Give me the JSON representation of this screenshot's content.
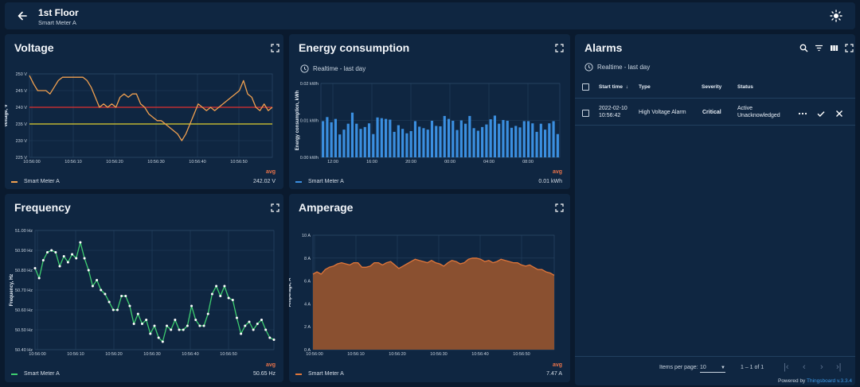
{
  "header": {
    "title": "1st Floor",
    "subtitle": "Smart Meter A"
  },
  "voltage": {
    "title": "Voltage",
    "legend_name": "Smart Meter A",
    "avg_label": "avg",
    "avg_value": "242.02 V",
    "colors": {
      "line": "#f0a050",
      "high": "#e03030",
      "low": "#e0d030"
    }
  },
  "energy": {
    "title": "Energy consumption",
    "realtime": "Realtime - last day",
    "legend_name": "Smart Meter A",
    "avg_label": "avg",
    "avg_value": "0.01 kWh",
    "colors": {
      "bar": "#3b8fe0"
    }
  },
  "frequency": {
    "title": "Frequency",
    "legend_name": "Smart Meter A",
    "avg_label": "avg",
    "avg_value": "50.65 Hz",
    "colors": {
      "line": "#3ecf70"
    }
  },
  "amperage": {
    "title": "Amperage",
    "legend_name": "Smart Meter A",
    "avg_label": "avg",
    "avg_value": "7.47 A",
    "colors": {
      "fill": "#8a5030",
      "line": "#e0763a"
    }
  },
  "alarms": {
    "title": "Alarms",
    "realtime": "Realtime - last day",
    "columns": {
      "start_time": "Start time",
      "type": "Type",
      "severity": "Severity",
      "status": "Status"
    },
    "rows": [
      {
        "date": "2022-02-10",
        "time": "10:56:42",
        "type": "High Voltage Alarm",
        "severity": "Critical",
        "status1": "Active",
        "status2": "Unacknowledged"
      }
    ],
    "pager": {
      "label": "Items per page:",
      "size": "10",
      "range": "1 – 1 of 1"
    }
  },
  "footer": {
    "powered": "Powered by",
    "brand": "Thingsboard",
    "version": "v.3.3.4"
  },
  "chart_data": [
    {
      "type": "line",
      "title": "Voltage",
      "ylabel": "Voltage, V",
      "ylim": [
        225,
        250
      ],
      "yticks": [
        "225 V",
        "230 V",
        "235 V",
        "240 V",
        "245 V",
        "250 V"
      ],
      "xticks": [
        "10:56:00",
        "10:56:10",
        "10:56:20",
        "10:56:30",
        "10:56:40",
        "10:56:50"
      ],
      "thresholds": [
        240,
        235
      ],
      "grid": true,
      "series": [
        {
          "name": "Smart Meter A",
          "x": [
            0,
            1,
            2,
            3,
            4,
            5,
            6,
            7,
            8,
            9,
            10,
            11,
            12,
            13,
            14,
            15,
            16,
            17,
            18,
            19,
            20,
            21,
            22,
            23,
            24,
            25,
            26,
            27,
            28,
            29,
            30,
            31,
            32,
            33,
            34,
            35,
            36,
            37,
            38,
            39,
            40,
            41,
            42,
            43,
            44,
            45,
            46,
            47,
            48,
            49,
            50,
            51,
            52,
            53,
            54,
            55,
            56,
            57,
            58,
            59
          ],
          "values": [
            249.5,
            247,
            245,
            245,
            245,
            244,
            246,
            248,
            249,
            249,
            249,
            249,
            249,
            249,
            248,
            246,
            243,
            240,
            241,
            240,
            241,
            240,
            243,
            244,
            243,
            244,
            244,
            241,
            240,
            238,
            237,
            236,
            236,
            235,
            234,
            233,
            232,
            230,
            232,
            235,
            238,
            241,
            240,
            239,
            240,
            239,
            240,
            241,
            242,
            243,
            244,
            245,
            248,
            244,
            243,
            240,
            239,
            241,
            239,
            240
          ]
        }
      ]
    },
    {
      "type": "bar",
      "title": "Energy consumption",
      "ylabel": "Energy consumption, kWh",
      "ylim": [
        0,
        0.02
      ],
      "yticks": [
        "0.00 kWh",
        "0.01 kWh",
        "0.02 kWh"
      ],
      "xticks": [
        "12:00",
        "16:00",
        "20:00",
        "00:00",
        "04:00",
        "08:00"
      ],
      "grid": true,
      "series": [
        {
          "name": "Smart Meter A",
          "values": [
            0.0098,
            0.0109,
            0.0095,
            0.0104,
            0.0062,
            0.0075,
            0.0091,
            0.0121,
            0.0091,
            0.0077,
            0.0082,
            0.0092,
            0.0063,
            0.0108,
            0.0106,
            0.0104,
            0.0102,
            0.0069,
            0.0087,
            0.0077,
            0.0065,
            0.0071,
            0.0098,
            0.0083,
            0.0079,
            0.0075,
            0.0099,
            0.0085,
            0.0084,
            0.0112,
            0.0104,
            0.0099,
            0.0074,
            0.01,
            0.0091,
            0.0112,
            0.0079,
            0.0072,
            0.0082,
            0.0089,
            0.0103,
            0.0113,
            0.0091,
            0.0101,
            0.0099,
            0.008,
            0.0085,
            0.0081,
            0.0098,
            0.0098,
            0.0092,
            0.0069,
            0.0091,
            0.0075,
            0.0092,
            0.0098,
            0.0063
          ]
        }
      ]
    },
    {
      "type": "line",
      "title": "Frequency",
      "ylabel": "Frequency, Hz",
      "ylim": [
        50.4,
        51.0
      ],
      "yticks": [
        "50.40 Hz",
        "50.50 Hz",
        "50.60 Hz",
        "50.70 Hz",
        "50.80 Hz",
        "50.90 Hz",
        "51.00 Hz"
      ],
      "xticks": [
        "10:56:00",
        "10:56:10",
        "10:56:20",
        "10:56:30",
        "10:56:40",
        "10:56:50"
      ],
      "grid": true,
      "series": [
        {
          "name": "Smart Meter A",
          "values": [
            50.81,
            50.76,
            50.85,
            50.89,
            50.9,
            50.89,
            50.82,
            50.87,
            50.84,
            50.88,
            50.86,
            50.94,
            50.86,
            50.8,
            50.72,
            50.75,
            50.7,
            50.68,
            50.64,
            50.6,
            50.6,
            50.67,
            50.67,
            50.62,
            50.53,
            50.58,
            50.53,
            50.55,
            50.48,
            50.52,
            50.46,
            50.44,
            50.52,
            50.5,
            50.55,
            50.5,
            50.5,
            50.52,
            50.62,
            50.55,
            50.52,
            50.52,
            50.58,
            50.68,
            50.72,
            50.67,
            50.72,
            50.66,
            50.65,
            50.56,
            50.48,
            50.52,
            50.54,
            50.5,
            50.53,
            50.55,
            50.5,
            50.46,
            50.45
          ]
        }
      ]
    },
    {
      "type": "area",
      "title": "Amperage",
      "ylabel": "Amperage, A",
      "ylim": [
        0,
        10
      ],
      "yticks": [
        "0 A",
        "2 A",
        "4 A",
        "6 A",
        "8 A",
        "10 A"
      ],
      "xticks": [
        "10:56:00",
        "10:56:10",
        "10:56:20",
        "10:56:30",
        "10:56:40",
        "10:56:50"
      ],
      "grid": true,
      "series": [
        {
          "name": "Smart Meter A",
          "values": [
            6.6,
            6.8,
            6.6,
            7.0,
            7.2,
            7.3,
            7.5,
            7.6,
            7.5,
            7.4,
            7.6,
            7.6,
            7.2,
            7.2,
            7.3,
            7.6,
            7.6,
            7.4,
            7.6,
            7.7,
            7.4,
            7.1,
            7.3,
            7.5,
            7.7,
            7.9,
            7.8,
            7.7,
            7.6,
            7.8,
            7.6,
            7.5,
            7.3,
            7.6,
            7.8,
            7.7,
            7.5,
            7.6,
            7.9,
            8.0,
            8.0,
            7.9,
            7.7,
            7.8,
            7.6,
            7.7,
            7.9,
            7.8,
            7.7,
            7.6,
            7.6,
            7.4,
            7.3,
            7.4,
            7.2,
            7.0,
            7.0,
            6.8,
            6.7,
            6.5
          ]
        }
      ]
    }
  ]
}
